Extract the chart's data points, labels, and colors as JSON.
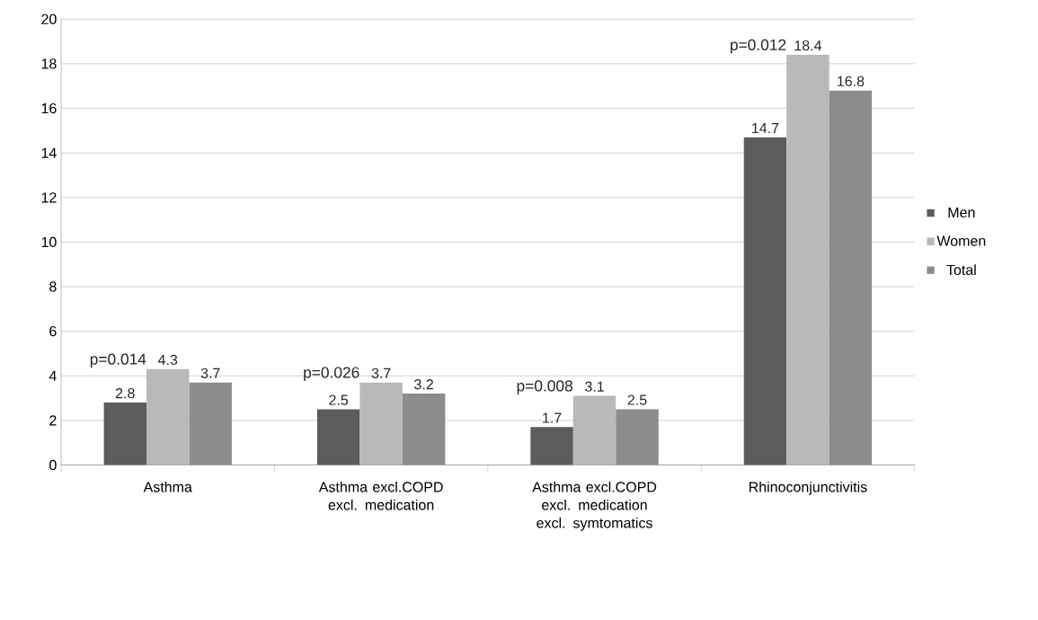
{
  "chart_data": {
    "type": "bar",
    "categories": [
      "Asthma",
      "Asthma excl.COPD excl. medication",
      "Asthma excl.COPD excl. medication excl. symtomatics",
      "Rhinoconjunctivitis"
    ],
    "series": [
      {
        "name": "Men",
        "color": "#5c5c5c",
        "values": [
          2.8,
          2.5,
          1.7,
          14.7
        ]
      },
      {
        "name": "Women",
        "color": "#b9b9b9",
        "values": [
          4.3,
          3.7,
          3.1,
          18.4
        ]
      },
      {
        "name": "Total",
        "color": "#8c8c8c",
        "values": [
          3.7,
          3.2,
          2.5,
          16.8
        ]
      }
    ],
    "ylim": [
      0,
      20
    ],
    "yticks": [
      0,
      2,
      4,
      6,
      8,
      10,
      12,
      14,
      16,
      18,
      20
    ],
    "grid": "y",
    "legend": "right",
    "data_labels": true,
    "annotations": [
      "p=0.014",
      "p=0.026",
      "p=0.008",
      "p=0.012"
    ]
  }
}
